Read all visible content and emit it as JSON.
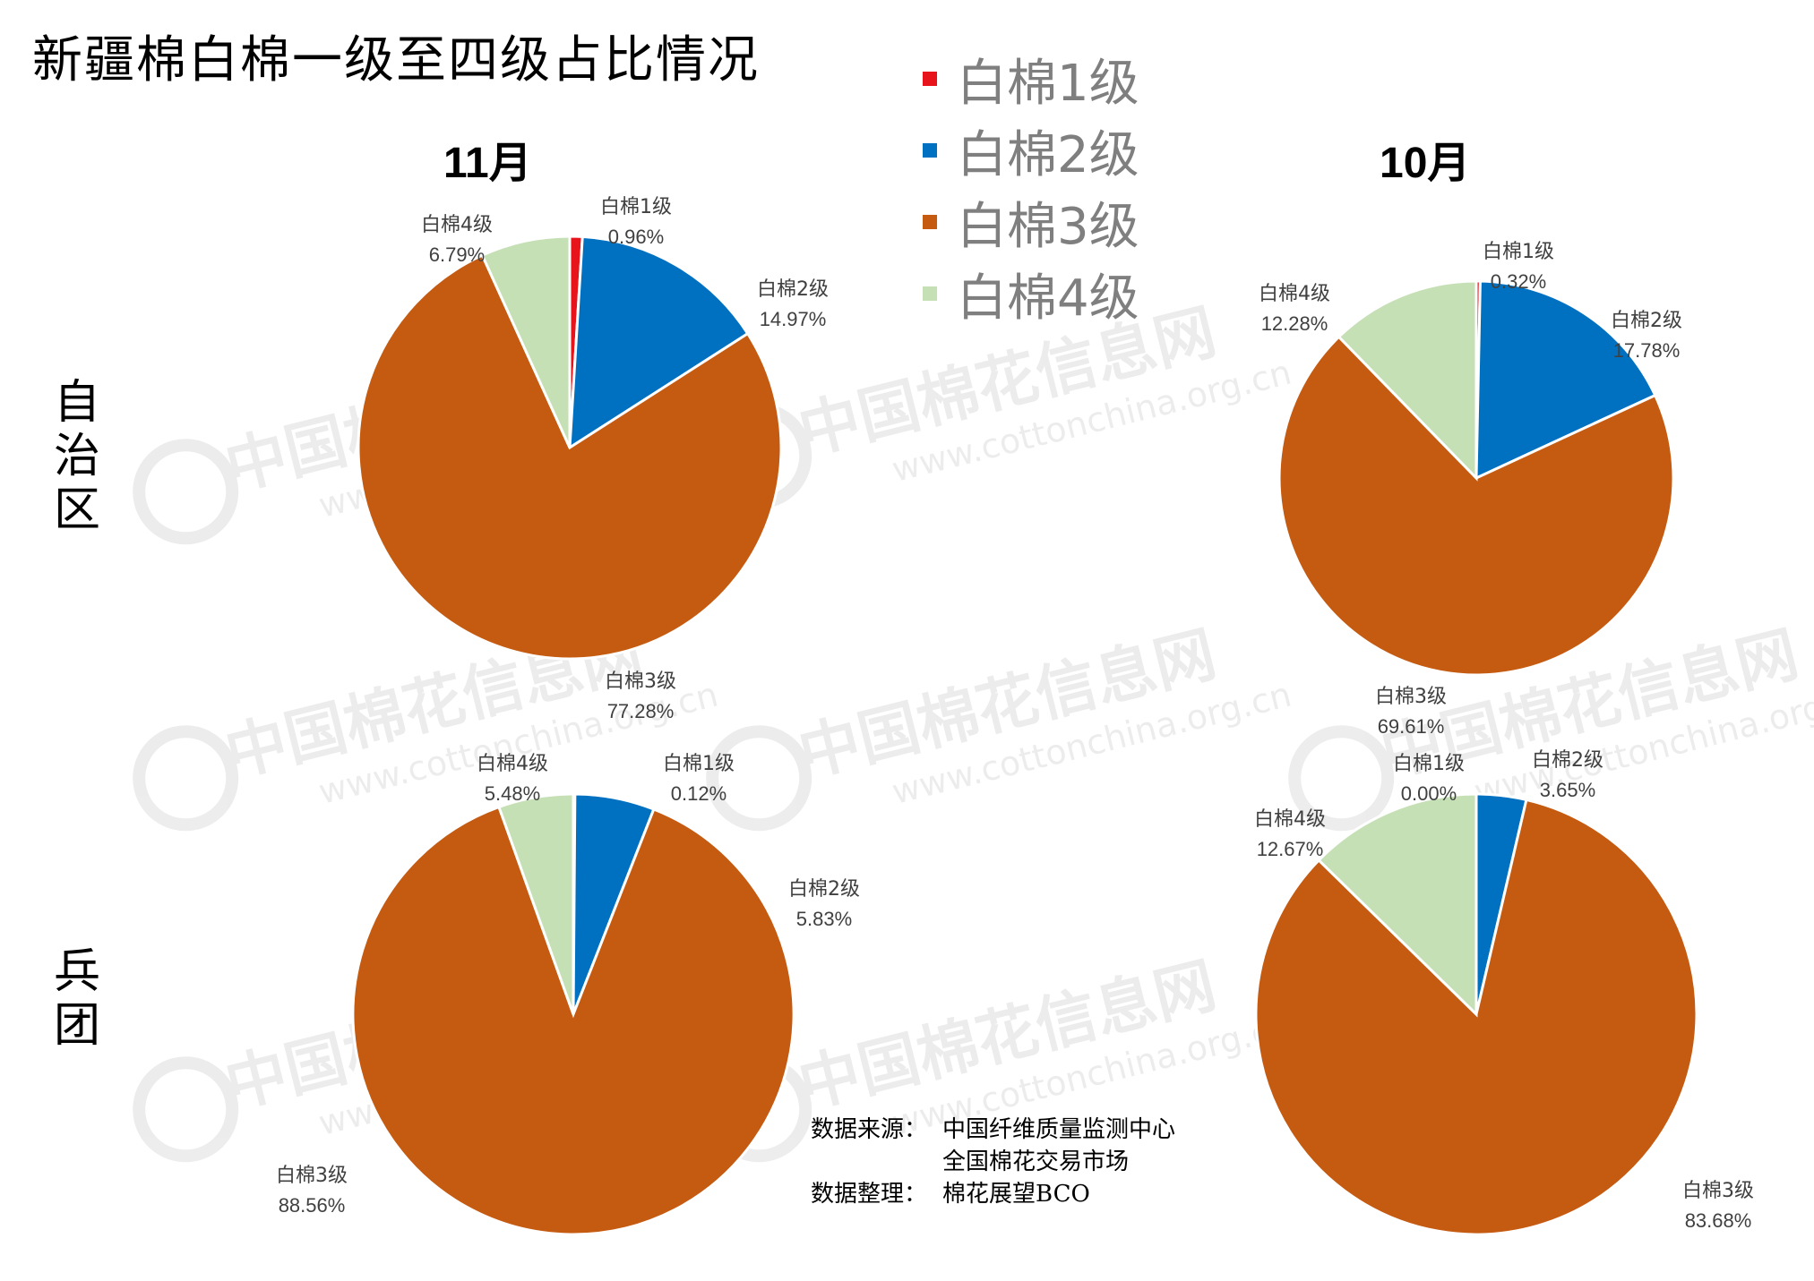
{
  "title": "新疆棉白棉一级至四级占比情况",
  "legend": [
    {
      "label": "白棉1级",
      "color": "#e8141c"
    },
    {
      "label": "白棉2级",
      "color": "#0070c0"
    },
    {
      "label": "白棉3级",
      "color": "#c55a11"
    },
    {
      "label": "白棉4级",
      "color": "#c5e0b4"
    }
  ],
  "columns": [
    "11月",
    "10月"
  ],
  "rows": [
    "自治区",
    "兵团"
  ],
  "row_label_chars": [
    [
      "自",
      "治",
      "区"
    ],
    [
      "兵",
      "团"
    ]
  ],
  "watermark": {
    "name": "中国棉花信息网",
    "url": "www.cottonchina.org.cn"
  },
  "source": {
    "line1_key": "数据来源：",
    "line1_val": "中国纤维质量监测中心",
    "line2_val": "全国棉花交易市场",
    "line3_key": "数据整理：",
    "line3_val": "棉花展望BCO"
  },
  "chart_data": [
    {
      "type": "pie",
      "row": "自治区",
      "column": "11月",
      "labels": [
        "白棉1级",
        "白棉2级",
        "白棉3级",
        "白棉4级"
      ],
      "values": [
        0.96,
        14.97,
        77.28,
        6.79
      ],
      "value_labels": [
        "0.96%",
        "14.97%",
        "77.28%",
        "6.79%"
      ]
    },
    {
      "type": "pie",
      "row": "自治区",
      "column": "10月",
      "labels": [
        "白棉1级",
        "白棉2级",
        "白棉3级",
        "白棉4级"
      ],
      "values": [
        0.32,
        17.78,
        69.61,
        12.28
      ],
      "value_labels": [
        "0.32%",
        "17.78%",
        "69.61%",
        "12.28%"
      ]
    },
    {
      "type": "pie",
      "row": "兵团",
      "column": "11月",
      "labels": [
        "白棉1级",
        "白棉2级",
        "白棉3级",
        "白棉4级"
      ],
      "values": [
        0.12,
        5.83,
        88.56,
        5.48
      ],
      "value_labels": [
        "0.12%",
        "5.83%",
        "88.56%",
        "5.48%"
      ]
    },
    {
      "type": "pie",
      "row": "兵团",
      "column": "10月",
      "labels": [
        "白棉1级",
        "白棉2级",
        "白棉3级",
        "白棉4级"
      ],
      "values": [
        0.0,
        3.65,
        83.68,
        12.67
      ],
      "value_labels": [
        "0.00%",
        "3.65%",
        "83.68%",
        "12.67%"
      ]
    }
  ]
}
